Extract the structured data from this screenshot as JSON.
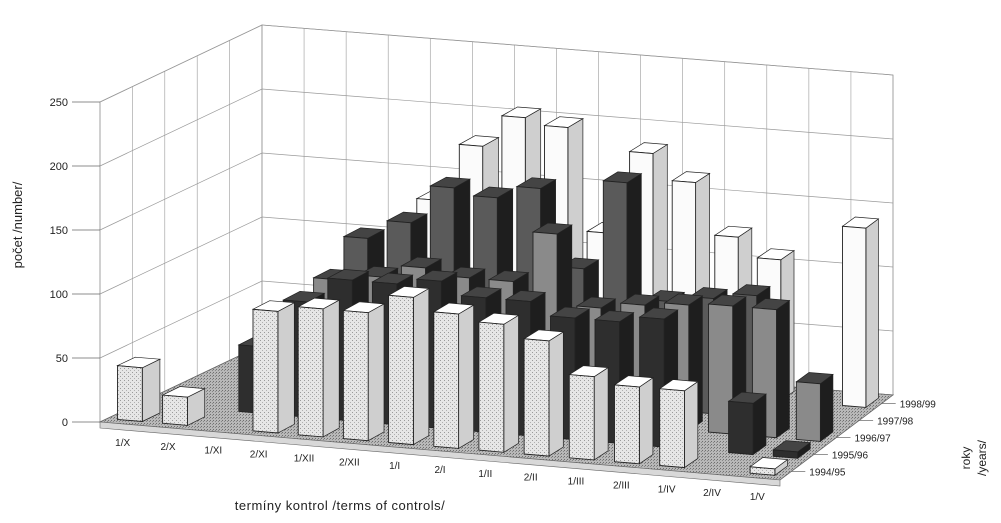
{
  "chart_data": {
    "type": "bar",
    "subtype": "3d-grouped-bar",
    "ylabel": "počet /number/",
    "xlabel": "termíny kontrol /terms of controls/",
    "zlabel_line1": "roky",
    "zlabel_line2": "/years/",
    "ylim": [
      0,
      250
    ],
    "yticks": [
      "0",
      "50",
      "100",
      "150",
      "200",
      "250"
    ],
    "categories": [
      "1/X",
      "2/X",
      "1/XI",
      "2/XI",
      "1/XII",
      "2/XII",
      "1/I",
      "2/I",
      "1/II",
      "2/II",
      "1/III",
      "2/III",
      "1/IV",
      "2/IV",
      "1/V"
    ],
    "series": [
      {
        "name": "1994/95",
        "values": [
          42,
          22,
          null,
          95,
          100,
          100,
          115,
          105,
          100,
          90,
          65,
          60,
          60,
          null,
          5
        ]
      },
      {
        "name": "1995/96",
        "values": [
          null,
          null,
          52,
          90,
          110,
          110,
          115,
          105,
          105,
          95,
          95,
          100,
          null,
          40,
          5
        ]
      },
      {
        "name": "1996/97",
        "values": [
          null,
          null,
          25,
          95,
          100,
          110,
          105,
          105,
          145,
          90,
          95,
          98,
          100,
          100,
          45
        ]
      },
      {
        "name": "1997/98",
        "values": [
          null,
          null,
          null,
          115,
          130,
          160,
          155,
          165,
          105,
          175,
          85,
          90,
          95,
          null,
          null
        ]
      },
      {
        "name": "1998/99",
        "values": [
          null,
          null,
          null,
          null,
          135,
          180,
          205,
          200,
          120,
          185,
          165,
          125,
          110,
          null,
          140
        ]
      }
    ],
    "grid": "on"
  },
  "colors": {
    "series": [
      "#ececec",
      "#2e2e2e",
      "#8a8a8a",
      "#5a5a5a",
      "#fbfbfb"
    ],
    "floor": "#9a9a9a",
    "grid": "#9a9a9a"
  }
}
